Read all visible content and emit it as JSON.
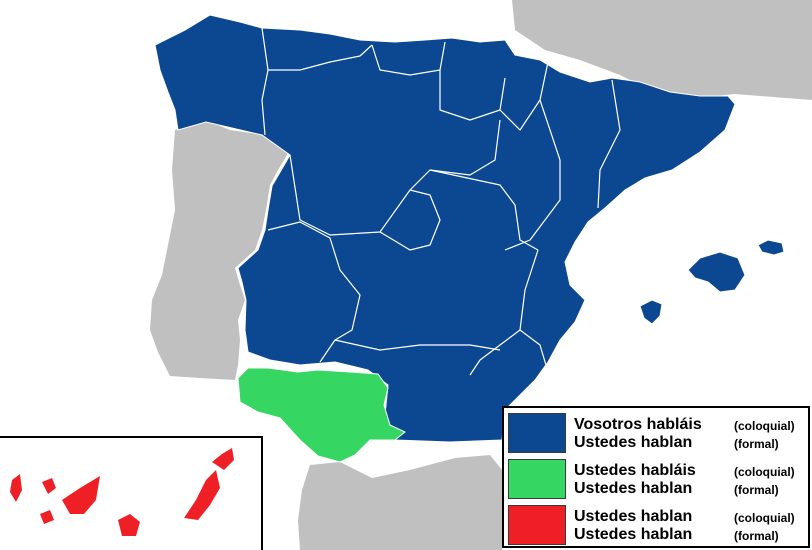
{
  "colors": {
    "sea": "#ffffff",
    "neighbor_land": "#c0c0c0",
    "region_border": "#ffffff",
    "vosotros_region": "#0b4891",
    "andalusia_west": "#36d662",
    "canary": "#ee2026"
  },
  "legend": {
    "items": [
      {
        "color": "#0b4891",
        "line1": "Vosotros habláis",
        "note1": "(coloquial)",
        "line2": "Ustedes hablan",
        "note2": "(formal)"
      },
      {
        "color": "#36d662",
        "line1": "Ustedes habláis",
        "note1": "(coloquial)",
        "line2": "Ustedes hablan",
        "note2": "(formal)"
      },
      {
        "color": "#ee2026",
        "line1": "Ustedes hablan",
        "note1": "(coloquial)",
        "line2": "Ustedes hablan",
        "note2": "(formal)"
      }
    ]
  }
}
